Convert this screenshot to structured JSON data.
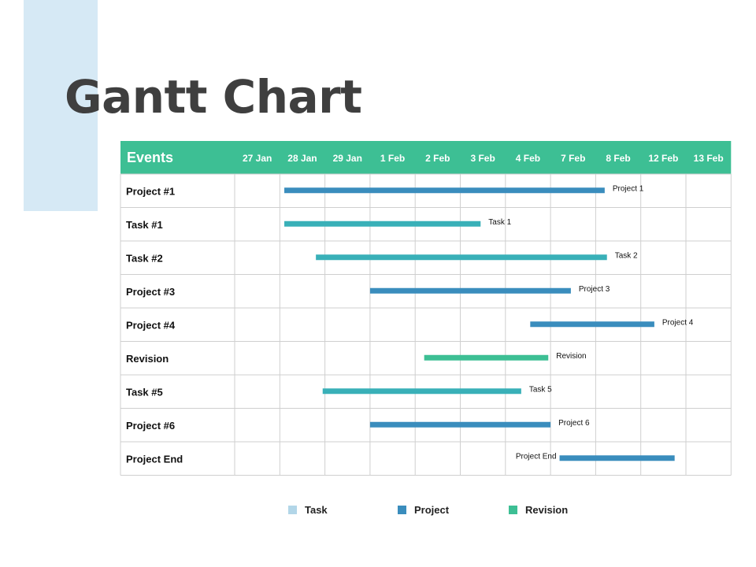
{
  "page": {
    "title": "Gantt Chart"
  },
  "colors": {
    "header_bg": "#3dbf94",
    "header_text": "#ffffff",
    "grid_line": "#cfcfcf",
    "accent_block": "#d6e9f5",
    "task": "#39b0b8",
    "project": "#3a8dbd",
    "revision": "#3dbf94",
    "legend_task": "#b2d6e8",
    "legend_project": "#3a8dbd",
    "legend_revision": "#3dbf94"
  },
  "chart_data": {
    "type": "gantt",
    "header": "Events",
    "columns": [
      "27 Jan",
      "28 Jan",
      "29 Jan",
      "1 Feb",
      "2 Feb",
      "3 Feb",
      "4 Feb",
      "7 Feb",
      "8 Feb",
      "12 Feb",
      "13 Feb"
    ],
    "rows": [
      {
        "event": "Project #1",
        "bar_label": "Project 1",
        "category": "project",
        "start": 1.1,
        "end": 8.2,
        "label_side": "right"
      },
      {
        "event": "Task #1",
        "bar_label": "Task 1",
        "category": "task",
        "start": 1.1,
        "end": 5.45,
        "label_side": "right"
      },
      {
        "event": "Task #2",
        "bar_label": "Task 2",
        "category": "task",
        "start": 1.8,
        "end": 8.25,
        "label_side": "right"
      },
      {
        "event": "Project #3",
        "bar_label": "Project 3",
        "category": "project",
        "start": 3.0,
        "end": 7.45,
        "label_side": "right"
      },
      {
        "event": "Project #4",
        "bar_label": "Project 4",
        "category": "project",
        "start": 6.55,
        "end": 9.3,
        "label_side": "right"
      },
      {
        "event": "Revision",
        "bar_label": "Revision",
        "category": "revision",
        "start": 4.2,
        "end": 6.95,
        "label_side": "right"
      },
      {
        "event": "Task #5",
        "bar_label": "Task 5",
        "category": "task",
        "start": 1.95,
        "end": 6.35,
        "label_side": "right"
      },
      {
        "event": "Project #6",
        "bar_label": "Project 6",
        "category": "project",
        "start": 3.0,
        "end": 7.0,
        "label_side": "right"
      },
      {
        "event": "Project End",
        "bar_label": "Project End",
        "category": "project",
        "start": 7.2,
        "end": 9.75,
        "label_side": "left"
      }
    ],
    "legend": [
      {
        "label": "Task",
        "category": "task"
      },
      {
        "label": "Project",
        "category": "project"
      },
      {
        "label": "Revision",
        "category": "revision"
      }
    ]
  }
}
